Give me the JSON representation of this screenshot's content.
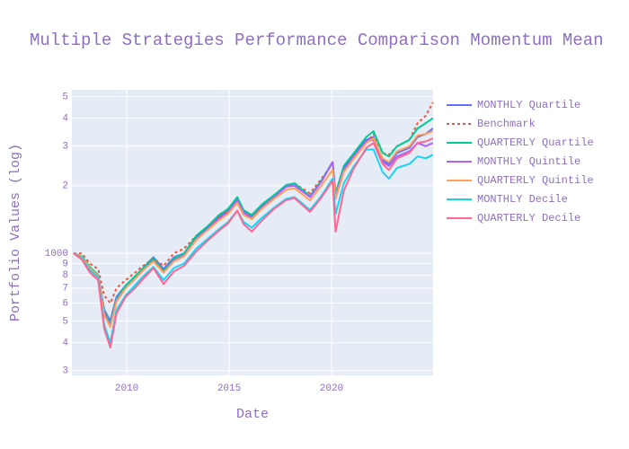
{
  "chart_data": {
    "type": "line",
    "title": "Multiple Strategies Performance Comparison Momentum Mean",
    "x_label": "Date",
    "y_label": "Portfolio Values (log)",
    "log_y": true,
    "grid": true,
    "legend": "outside-right",
    "x": [
      2007.4,
      2007.8,
      2008.2,
      2008.6,
      2008.9,
      2009.2,
      2009.5,
      2009.95,
      2010.4,
      2010.8,
      2011.3,
      2011.8,
      2012.3,
      2012.8,
      2013.4,
      2013.95,
      2014.5,
      2014.95,
      2015.4,
      2015.7,
      2016.1,
      2016.6,
      2017.2,
      2017.8,
      2018.2,
      2018.95,
      2019.5,
      2020.05,
      2020.2,
      2020.6,
      2021.1,
      2021.7,
      2022.05,
      2022.5,
      2022.8,
      2023.2,
      2023.8,
      2024.2,
      2024.6,
      2024.95
    ],
    "xlim": [
      2007.32,
      2024.96
    ],
    "xticks": [
      2010,
      2015,
      2020
    ],
    "ylim": [
      286,
      5350
    ],
    "yticks": [
      {
        "value": 300,
        "label": "3"
      },
      {
        "value": 400,
        "label": "4"
      },
      {
        "value": 500,
        "label": "5"
      },
      {
        "value": 600,
        "label": "6"
      },
      {
        "value": 700,
        "label": "7"
      },
      {
        "value": 800,
        "label": "8"
      },
      {
        "value": 900,
        "label": "9"
      },
      1000,
      {
        "value": 2000,
        "label": "2"
      },
      {
        "value": 3000,
        "label": "3"
      },
      {
        "value": 4000,
        "label": "4"
      },
      {
        "value": 5000,
        "label": "5"
      }
    ],
    "series": [
      {
        "name": "MONTHLY Quartile",
        "color": "#636efa",
        "values": [
          1000,
          960,
          860,
          800,
          560,
          500,
          640,
          720,
          780,
          860,
          960,
          850,
          960,
          1000,
          1180,
          1300,
          1450,
          1550,
          1750,
          1550,
          1450,
          1620,
          1800,
          2000,
          2000,
          1800,
          2100,
          2550,
          1800,
          2400,
          2750,
          3200,
          3300,
          2600,
          2500,
          2800,
          2950,
          3300,
          3400,
          3600
        ]
      },
      {
        "name": "Benchmark",
        "color": "#EF553B",
        "dash": true,
        "values": [
          1000,
          1000,
          900,
          850,
          650,
          600,
          700,
          760,
          820,
          880,
          950,
          880,
          1000,
          1050,
          1200,
          1320,
          1450,
          1550,
          1700,
          1520,
          1480,
          1650,
          1800,
          2000,
          2050,
          1850,
          2150,
          2500,
          1850,
          2350,
          2700,
          3100,
          3400,
          2800,
          2750,
          3000,
          3200,
          3800,
          4100,
          4700
        ]
      },
      {
        "name": "QUARTERLY Quartile",
        "color": "#00cc96",
        "values": [
          1000,
          970,
          870,
          800,
          550,
          490,
          630,
          720,
          790,
          860,
          950,
          830,
          950,
          1000,
          1200,
          1320,
          1480,
          1580,
          1780,
          1560,
          1480,
          1650,
          1820,
          2020,
          2050,
          1800,
          2100,
          2550,
          1850,
          2450,
          2800,
          3300,
          3500,
          2800,
          2700,
          3000,
          3200,
          3600,
          3800,
          4000
        ]
      },
      {
        "name": "MONTHLY Quintile",
        "color": "#ab63fa",
        "values": [
          1000,
          960,
          850,
          790,
          540,
          480,
          620,
          700,
          770,
          840,
          930,
          820,
          930,
          980,
          1150,
          1280,
          1420,
          1520,
          1720,
          1520,
          1430,
          1600,
          1780,
          1980,
          2000,
          1780,
          2080,
          2550,
          1800,
          2350,
          2700,
          3150,
          3200,
          2550,
          2450,
          2700,
          2850,
          3100,
          3000,
          3100
        ]
      },
      {
        "name": "QUARTERLY Quintile",
        "color": "#FFA15A",
        "values": [
          1000,
          960,
          860,
          790,
          530,
          470,
          610,
          700,
          770,
          840,
          920,
          820,
          920,
          970,
          1150,
          1270,
          1400,
          1500,
          1680,
          1480,
          1420,
          1580,
          1750,
          1920,
          1950,
          1720,
          2000,
          2350,
          1750,
          2300,
          2650,
          3100,
          3250,
          2650,
          2550,
          2850,
          3000,
          3350,
          3400,
          3500
        ]
      },
      {
        "name": "MONTHLY Decile",
        "color": "#19d3f3",
        "values": [
          1000,
          950,
          840,
          780,
          480,
          400,
          560,
          650,
          720,
          790,
          870,
          760,
          860,
          900,
          1050,
          1160,
          1280,
          1380,
          1550,
          1380,
          1300,
          1440,
          1600,
          1750,
          1780,
          1560,
          1800,
          2150,
          1500,
          2050,
          2450,
          2900,
          2900,
          2300,
          2150,
          2400,
          2500,
          2700,
          2650,
          2750
        ]
      },
      {
        "name": "QUARTERLY Decile",
        "color": "#FF6692",
        "values": [
          1000,
          940,
          820,
          760,
          460,
          380,
          540,
          640,
          700,
          770,
          860,
          730,
          830,
          880,
          1020,
          1140,
          1260,
          1360,
          1550,
          1350,
          1250,
          1400,
          1580,
          1730,
          1760,
          1530,
          1770,
          2100,
          1250,
          1900,
          2400,
          2950,
          3100,
          2500,
          2350,
          2650,
          2800,
          3100,
          3150,
          3250
        ]
      }
    ]
  }
}
